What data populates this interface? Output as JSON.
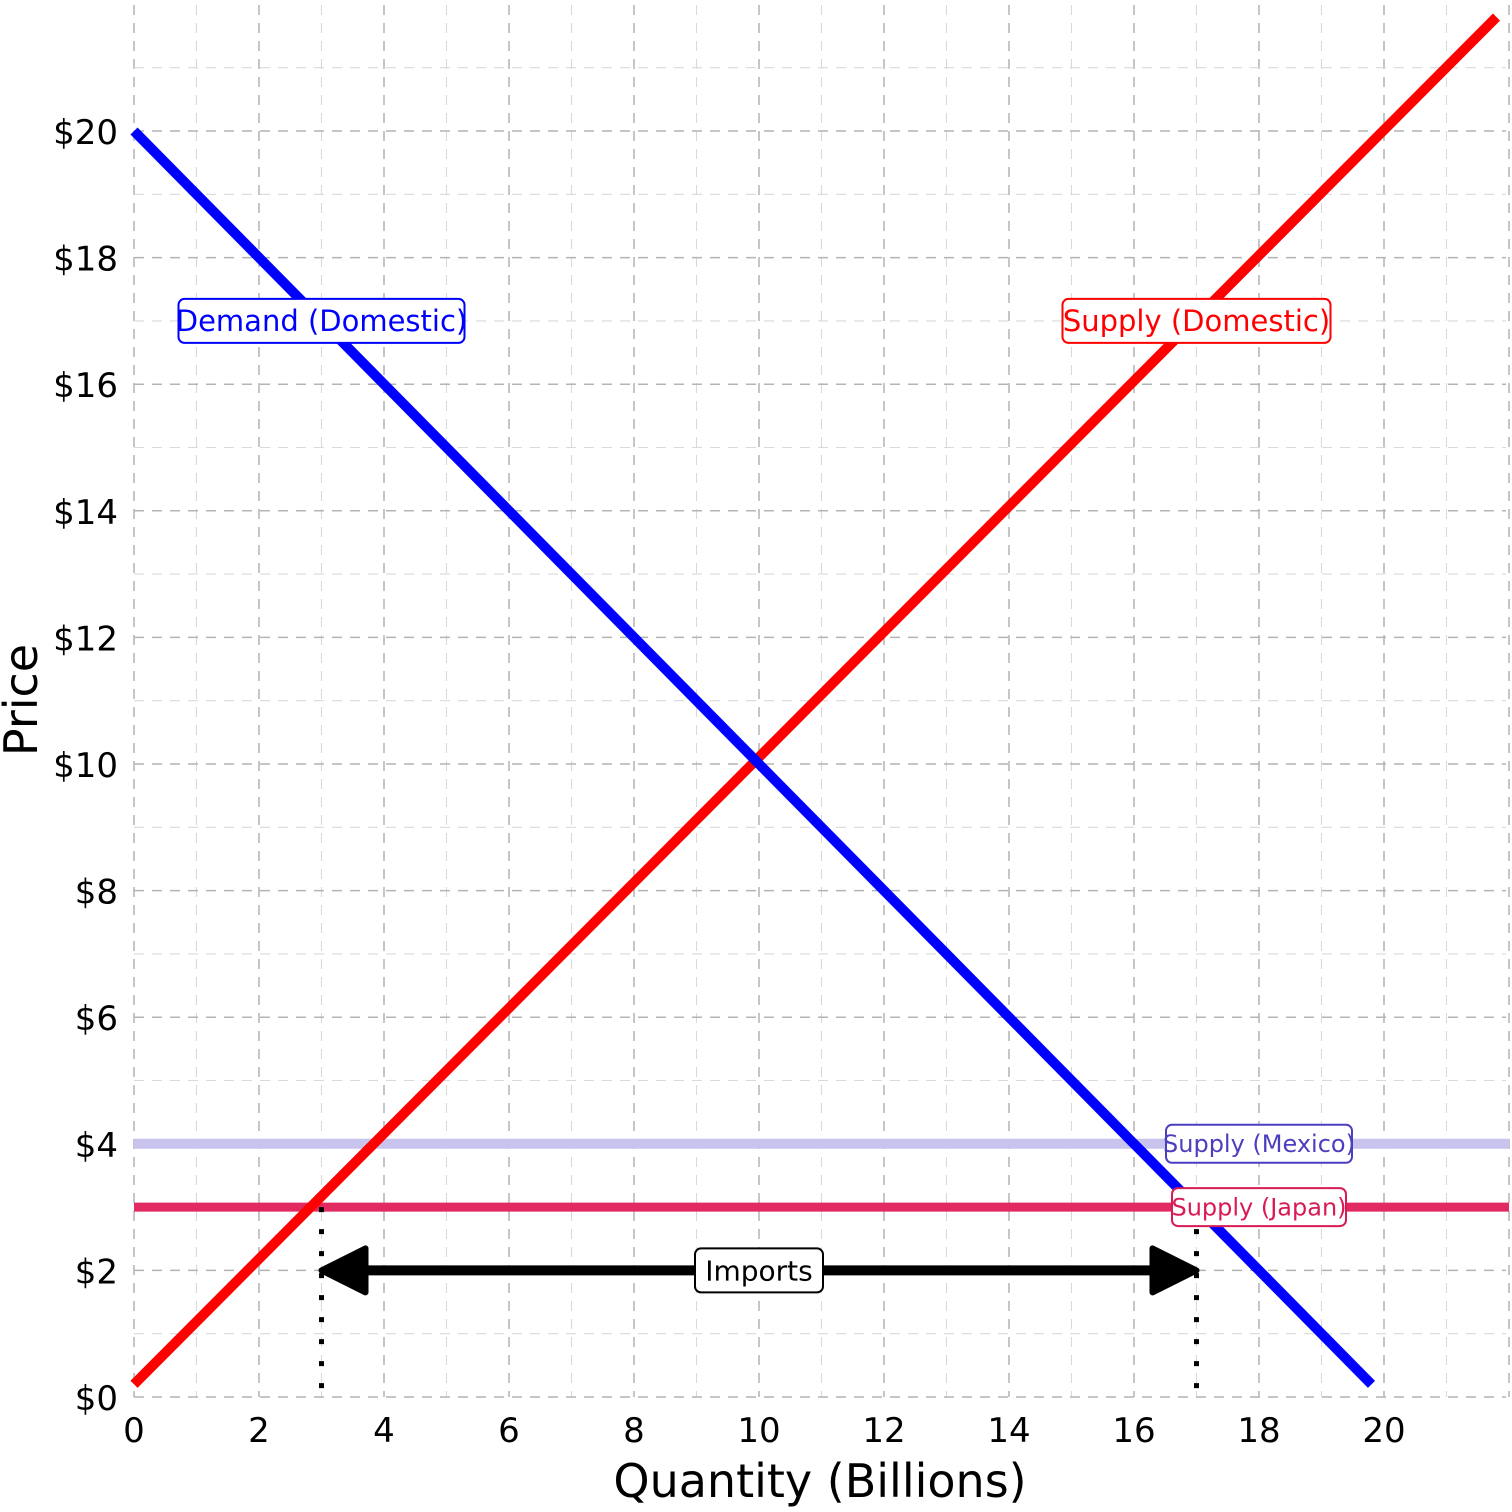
{
  "chart_data": {
    "type": "line",
    "xlabel": "Quantity (Billions)",
    "ylabel": "Price",
    "xlim": [
      0,
      22
    ],
    "ylim": [
      0,
      21
    ],
    "x_ticks": [
      0,
      2,
      4,
      6,
      8,
      10,
      12,
      14,
      16,
      18,
      20
    ],
    "x_tick_labels": [
      "0",
      "2",
      "4",
      "6",
      "8",
      "10",
      "12",
      "14",
      "16",
      "18",
      "20"
    ],
    "y_ticks": [
      0,
      2,
      4,
      6,
      8,
      10,
      12,
      14,
      16,
      18,
      20
    ],
    "y_tick_labels": [
      "$0",
      "$2",
      "$4",
      "$6",
      "$8",
      "$10",
      "$12",
      "$14",
      "$16",
      "$18",
      "$20"
    ],
    "grid": true,
    "series": [
      {
        "name": "Demand (Domestic)",
        "color": "#0000ff",
        "points": [
          [
            0,
            20
          ],
          [
            19.8,
            0.2
          ]
        ],
        "label_at": [
          3,
          17
        ]
      },
      {
        "name": "Supply (Domestic)",
        "color": "#ff0000",
        "points": [
          [
            0,
            0.2
          ],
          [
            21.8,
            21.8
          ]
        ],
        "label_at": [
          17,
          17
        ]
      },
      {
        "name": "Supply (Mexico)",
        "color": "#c8c4ee",
        "label_color": "#4b3fbf",
        "points": [
          [
            0,
            4
          ],
          [
            22,
            4
          ]
        ],
        "label_at": [
          18,
          4
        ]
      },
      {
        "name": "Supply (Japan)",
        "color": "#e02a60",
        "label_color": "#d81b55",
        "points": [
          [
            0,
            3
          ],
          [
            22,
            3
          ]
        ],
        "label_at": [
          18,
          3
        ]
      }
    ],
    "annotations": [
      {
        "type": "double-arrow",
        "label": "Imports",
        "from": [
          3,
          2
        ],
        "to": [
          17,
          2
        ]
      },
      {
        "type": "dotted-line",
        "from": [
          3,
          3
        ],
        "to": [
          3,
          0
        ]
      },
      {
        "type": "dotted-line",
        "from": [
          17,
          3
        ],
        "to": [
          17,
          0
        ]
      }
    ]
  }
}
